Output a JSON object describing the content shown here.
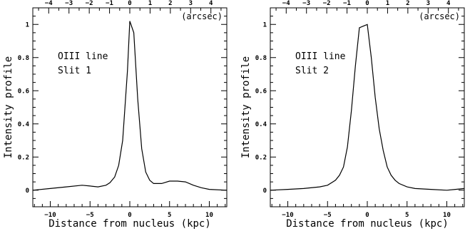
{
  "chart_data": [
    {
      "type": "line",
      "xlabel": "Distance from nucleus (kpc)",
      "ylabel": "Intensity profile",
      "x2label": "(arcsec)",
      "annotation_lines": [
        "OIII line",
        "Slit 1"
      ],
      "xlim": [
        -12.2,
        12.2
      ],
      "ylim": [
        -0.1,
        1.1
      ],
      "x_ticks": [
        -10,
        -5,
        0,
        5,
        10
      ],
      "x_tick_labels": [
        "−10",
        "−5",
        "0",
        "5",
        "10"
      ],
      "y_ticks": [
        0,
        0.2,
        0.4,
        0.6,
        0.8,
        1
      ],
      "y_tick_labels": [
        "0",
        "0.2",
        "0.4",
        "0.6",
        "0.8",
        "1"
      ],
      "x2_tick_values": [
        -4,
        -3,
        -2,
        -1,
        0,
        1,
        2,
        3,
        4
      ],
      "x2_tick_labels": [
        "−4",
        "−3",
        "−2",
        "−1",
        "0",
        "1",
        "2",
        "3",
        "4"
      ],
      "x2_kpc_per_unit": 2.55,
      "series": [
        {
          "x": [
            -12.2,
            -10,
            -8,
            -6,
            -5,
            -4,
            -3,
            -2.5,
            -1.9,
            -1.4,
            -0.9,
            -0.3,
            0,
            0.5,
            1,
            1.5,
            2,
            2.5,
            3,
            4,
            5,
            6,
            7,
            8,
            9,
            10,
            12.2
          ],
          "y": [
            0.0,
            0.01,
            0.02,
            0.03,
            0.025,
            0.02,
            0.03,
            0.045,
            0.08,
            0.15,
            0.3,
            0.72,
            1.02,
            0.95,
            0.55,
            0.25,
            0.11,
            0.06,
            0.04,
            0.04,
            0.055,
            0.055,
            0.05,
            0.03,
            0.015,
            0.005,
            0.0
          ]
        }
      ]
    },
    {
      "type": "line",
      "xlabel": "Distance from nucleus (kpc)",
      "ylabel": "Intensity profile",
      "x2label": "(arcsec)",
      "annotation_lines": [
        "OIII line",
        "Slit 2"
      ],
      "xlim": [
        -12.2,
        12.2
      ],
      "ylim": [
        -0.1,
        1.1
      ],
      "x_ticks": [
        -10,
        -5,
        0,
        5,
        10
      ],
      "x_tick_labels": [
        "−10",
        "−5",
        "0",
        "5",
        "10"
      ],
      "y_ticks": [
        0,
        0.2,
        0.4,
        0.6,
        0.8,
        1
      ],
      "y_tick_labels": [
        "0",
        "0.2",
        "0.4",
        "0.6",
        "0.8",
        "1"
      ],
      "x2_tick_values": [
        -4,
        -3,
        -2,
        -1,
        0,
        1,
        2,
        3,
        4
      ],
      "x2_tick_labels": [
        "−4",
        "−3",
        "−2",
        "−1",
        "0",
        "1",
        "2",
        "3",
        "4"
      ],
      "x2_kpc_per_unit": 2.55,
      "series": [
        {
          "x": [
            -12.2,
            -10,
            -8,
            -6,
            -5,
            -4,
            -3.5,
            -3,
            -2.5,
            -2,
            -1.5,
            -1,
            0,
            0.5,
            1,
            1.5,
            2,
            2.5,
            3,
            3.5,
            4,
            5,
            6,
            8,
            10,
            12.2
          ],
          "y": [
            0.0,
            0.005,
            0.01,
            0.02,
            0.03,
            0.06,
            0.09,
            0.14,
            0.26,
            0.48,
            0.75,
            0.98,
            1.0,
            0.8,
            0.56,
            0.37,
            0.24,
            0.14,
            0.09,
            0.06,
            0.04,
            0.02,
            0.01,
            0.005,
            0.0,
            0.01
          ]
        }
      ]
    }
  ]
}
